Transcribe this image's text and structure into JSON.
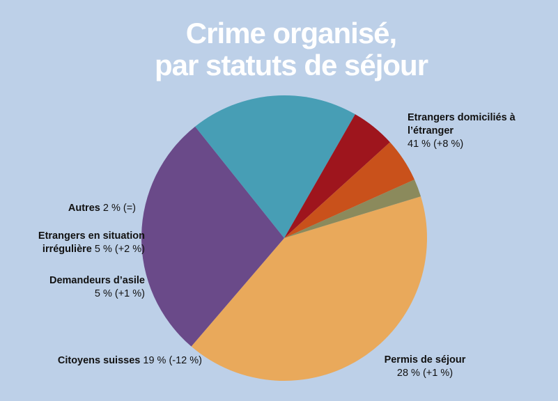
{
  "chart_data": {
    "type": "pie",
    "title": [
      "Crime organisé,",
      "par statuts de séjour"
    ],
    "categories": [
      "Etrangers domiciliés à l’étranger",
      "Permis de séjour",
      "Citoyens suisses",
      "Demandeurs d’asile",
      "Etrangers en situation irrégulière",
      "Autres"
    ],
    "values": [
      41,
      28,
      19,
      5,
      5,
      2
    ],
    "value_labels": [
      "41 % (+8 %)",
      "28 % (+1 %)",
      "19 % (-12 %)",
      "5 % (+1 %)",
      "5 % (+2 %)",
      "2 % (=)"
    ],
    "colors": [
      "#e9a95b",
      "#6a4a89",
      "#479eb5",
      "#9e151d",
      "#c9511b",
      "#8b8a5c"
    ]
  }
}
